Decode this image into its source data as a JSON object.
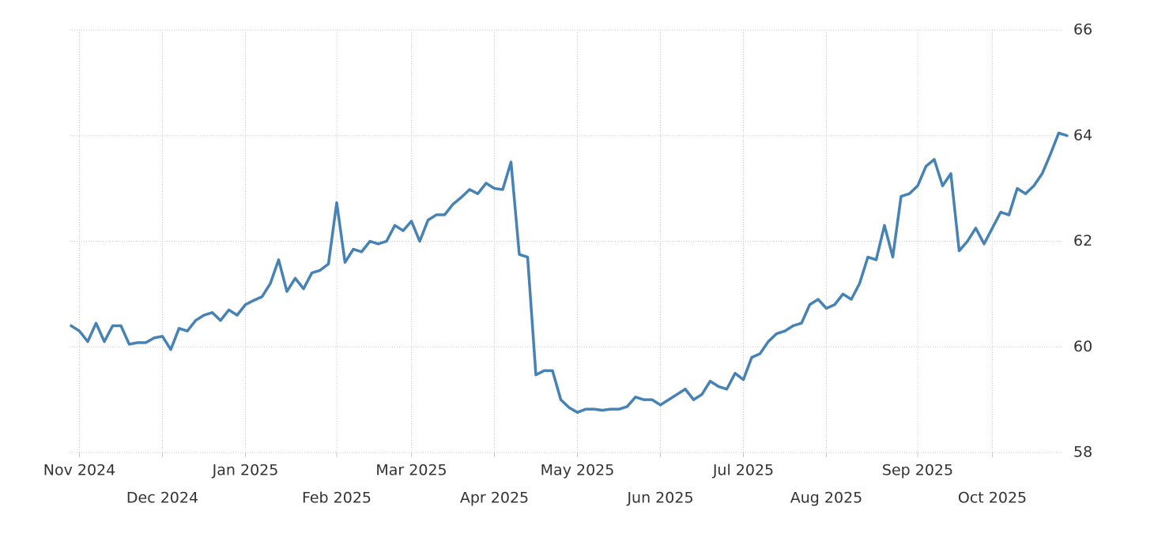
{
  "chart_data": {
    "type": "line",
    "categories": [
      null,
      "Nov 2024",
      null,
      null,
      null,
      null,
      null,
      null,
      null,
      null,
      null,
      "Dec 2024",
      null,
      null,
      null,
      null,
      null,
      null,
      null,
      null,
      null,
      "Jan 2025",
      null,
      null,
      null,
      null,
      null,
      null,
      null,
      null,
      null,
      null,
      "Feb 2025",
      null,
      null,
      null,
      null,
      null,
      null,
      null,
      null,
      "Mar 2025",
      null,
      null,
      null,
      null,
      null,
      null,
      null,
      null,
      null,
      "Apr 2025",
      null,
      null,
      null,
      null,
      null,
      null,
      null,
      null,
      null,
      "May 2025",
      null,
      null,
      null,
      null,
      null,
      null,
      null,
      null,
      null,
      "Jun 2025",
      null,
      null,
      null,
      null,
      null,
      null,
      null,
      null,
      null,
      "Jul 2025",
      null,
      null,
      null,
      null,
      null,
      null,
      null,
      null,
      null,
      "Aug 2025",
      null,
      null,
      null,
      null,
      null,
      null,
      null,
      null,
      null,
      null,
      "Sep 2025",
      null,
      null,
      null,
      null,
      null,
      null,
      null,
      null,
      "Oct 2025",
      null,
      null,
      null,
      null,
      null,
      null,
      null,
      null,
      null
    ],
    "series": [
      {
        "color": "#4682b4",
        "values": [
          60.4,
          60.3,
          60.1,
          60.45,
          60.1,
          60.4,
          60.4,
          60.05,
          60.08,
          60.08,
          60.17,
          60.2,
          59.95,
          60.35,
          60.3,
          60.5,
          60.6,
          60.65,
          60.5,
          60.7,
          60.6,
          60.8,
          60.88,
          60.95,
          61.2,
          61.65,
          61.05,
          61.3,
          61.1,
          61.4,
          61.45,
          61.57,
          62.73,
          61.6,
          61.85,
          61.8,
          62.0,
          61.95,
          62.0,
          62.3,
          62.2,
          62.38,
          62.0,
          62.4,
          62.5,
          62.5,
          62.7,
          62.83,
          62.98,
          62.9,
          63.1,
          63.0,
          62.98,
          63.5,
          61.75,
          61.7,
          59.47,
          59.55,
          59.55,
          59.0,
          58.85,
          58.76,
          58.82,
          58.82,
          58.8,
          58.82,
          58.82,
          58.87,
          59.05,
          59.0,
          59.0,
          58.9,
          59.0,
          59.1,
          59.2,
          59.0,
          59.1,
          59.35,
          59.25,
          59.2,
          59.5,
          59.38,
          59.8,
          59.87,
          60.1,
          60.25,
          60.3,
          60.4,
          60.45,
          60.8,
          60.9,
          60.73,
          60.8,
          61.0,
          60.9,
          61.2,
          61.7,
          61.65,
          62.3,
          61.7,
          62.85,
          62.9,
          63.05,
          63.42,
          63.55,
          63.05,
          63.28,
          61.82,
          62.0,
          62.25,
          61.95,
          62.25,
          62.55,
          62.5,
          63.0,
          62.9,
          63.05,
          63.28,
          63.65,
          64.05,
          64.0
        ]
      }
    ],
    "ylim": [
      58,
      66
    ],
    "yticks": [
      58,
      60,
      62,
      64,
      66
    ],
    "grid": true
  }
}
